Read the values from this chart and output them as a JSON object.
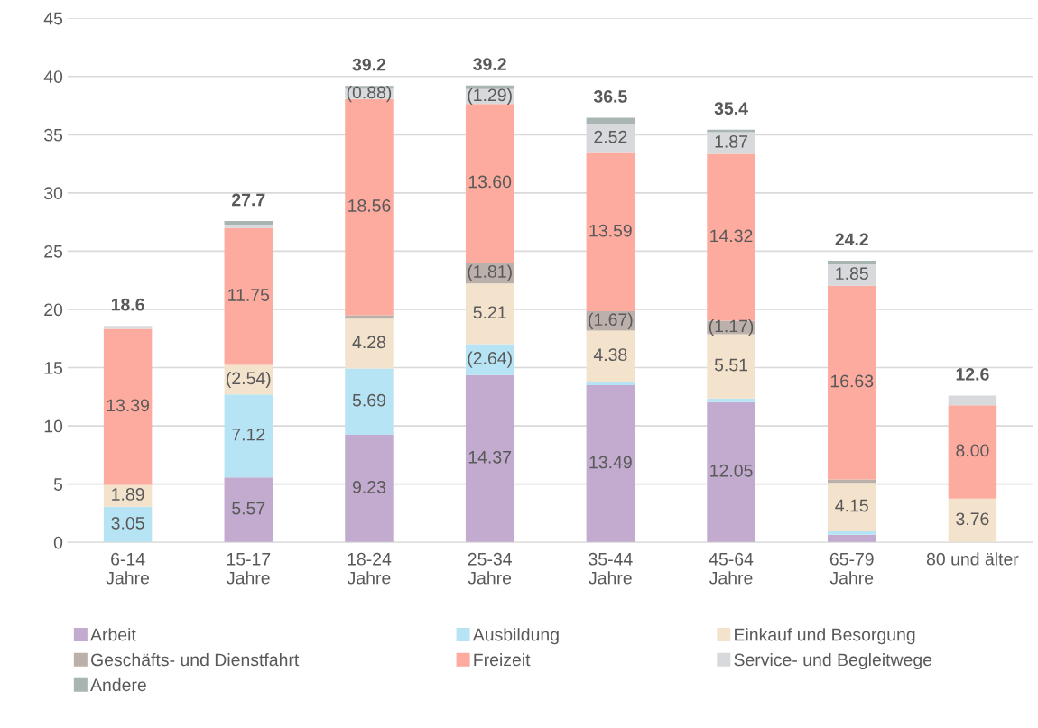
{
  "chart_data": {
    "type": "bar",
    "stacked": true,
    "categories": [
      "6-14\nJahre",
      "15-17\nJahre",
      "18-24\nJahre",
      "25-34\nJahre",
      "35-44\nJahre",
      "45-64\nJahre",
      "65-79\nJahre",
      "80 und älter"
    ],
    "series": [
      {
        "name": "Arbeit",
        "color": "#c3abd0",
        "values": [
          0,
          5.57,
          9.23,
          14.37,
          13.49,
          12.05,
          0.65,
          0
        ],
        "value_labels": [
          null,
          "5.57",
          "9.23",
          "14.37",
          "13.49",
          "12.05",
          null,
          null
        ]
      },
      {
        "name": "Ausbildung",
        "color": "#b7e4f4",
        "values": [
          3.05,
          7.12,
          5.69,
          2.64,
          0.3,
          0.3,
          0.3,
          0
        ],
        "value_labels": [
          "3.05",
          "7.12",
          "5.69",
          "(2.64)",
          null,
          null,
          null,
          null
        ]
      },
      {
        "name": "Einkauf und Besorgung",
        "color": "#f4e3cc",
        "values": [
          1.89,
          2.54,
          4.28,
          5.21,
          4.38,
          5.51,
          4.15,
          3.76
        ],
        "value_labels": [
          "1.89",
          "(2.54)",
          "4.28",
          "5.21",
          "4.38",
          "5.51",
          "4.15",
          "3.76"
        ]
      },
      {
        "name": "Geschäfts- und Dienstfahrt",
        "color": "#bcb0ab",
        "values": [
          0,
          null,
          0.3,
          1.81,
          1.67,
          1.17,
          0.3,
          0
        ],
        "value_labels": [
          null,
          null,
          null,
          "(1.81)",
          "(1.67)",
          "(1.17)",
          null,
          null
        ]
      },
      {
        "name": "Freizeit",
        "color": "#fdab9f",
        "values": [
          13.39,
          11.75,
          18.56,
          13.6,
          13.59,
          14.32,
          16.63,
          8.0
        ],
        "value_labels": [
          "13.39",
          "11.75",
          "18.56",
          "13.60",
          "13.59",
          "14.32",
          "16.63",
          "8.00"
        ]
      },
      {
        "name": "Service- und Begleitwege",
        "color": "#d7d9dc",
        "values": [
          0.25,
          0.3,
          0.88,
          1.29,
          2.52,
          1.87,
          1.85,
          0.84
        ],
        "value_labels": [
          null,
          null,
          "(0.88)",
          "(1.29)",
          "2.52",
          "1.87",
          "1.85",
          null
        ]
      },
      {
        "name": "Andere",
        "color": "#a9b5b3",
        "values": [
          0,
          0.3,
          0.25,
          0.3,
          0.5,
          0.2,
          0.3,
          0
        ],
        "value_labels": [
          null,
          null,
          null,
          null,
          null,
          null,
          null,
          null
        ]
      }
    ],
    "totals": [
      "18.6",
      "27.7",
      "39.2",
      "39.2",
      "36.5",
      "35.4",
      "24.2",
      "12.6"
    ],
    "ylim": [
      0,
      45
    ],
    "yticks": [
      0,
      5,
      10,
      15,
      20,
      25,
      30,
      35,
      40,
      45
    ],
    "grid": "y",
    "legend": "bottom"
  }
}
